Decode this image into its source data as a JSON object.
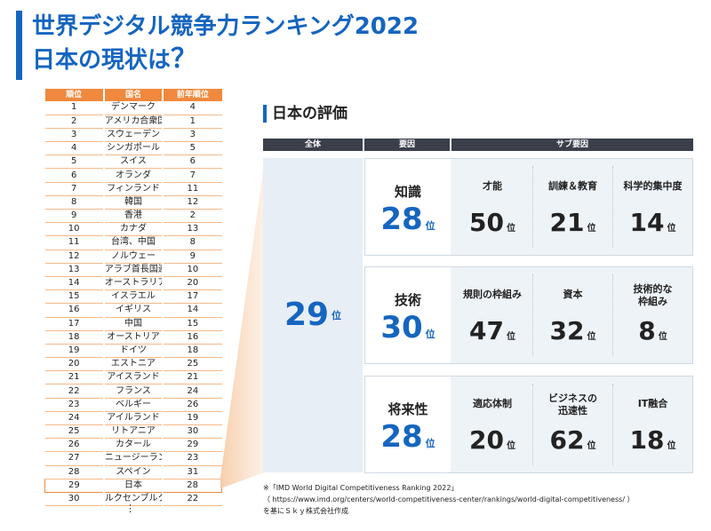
{
  "header": {
    "title_line1": "世界デジタル競争力ランキング2022",
    "title_line2": "日本の現状は",
    "title_q": "？"
  },
  "ranking": {
    "headers": [
      "順位",
      "国名",
      "前年順位"
    ],
    "rows": [
      [
        "1",
        "デンマーク",
        "4"
      ],
      [
        "2",
        "アメリカ合衆国",
        "1"
      ],
      [
        "3",
        "スウェーデン",
        "3"
      ],
      [
        "4",
        "シンガポール",
        "5"
      ],
      [
        "5",
        "スイス",
        "6"
      ],
      [
        "6",
        "オランダ",
        "7"
      ],
      [
        "7",
        "フィンランド",
        "11"
      ],
      [
        "8",
        "韓国",
        "12"
      ],
      [
        "9",
        "香港",
        "2"
      ],
      [
        "10",
        "カナダ",
        "13"
      ],
      [
        "11",
        "台湾、中国",
        "8"
      ],
      [
        "12",
        "ノルウェー",
        "9"
      ],
      [
        "13",
        "アラブ首長国連邦",
        "10"
      ],
      [
        "14",
        "オーストラリア",
        "20"
      ],
      [
        "15",
        "イスラエル",
        "17"
      ],
      [
        "16",
        "イギリス",
        "14"
      ],
      [
        "17",
        "中国",
        "15"
      ],
      [
        "18",
        "オーストリア",
        "16"
      ],
      [
        "19",
        "ドイツ",
        "18"
      ],
      [
        "20",
        "エストニア",
        "25"
      ],
      [
        "21",
        "アイスランド",
        "21"
      ],
      [
        "22",
        "フランス",
        "24"
      ],
      [
        "23",
        "ベルギー",
        "26"
      ],
      [
        "24",
        "アイルランド",
        "19"
      ],
      [
        "25",
        "リトアニア",
        "30"
      ],
      [
        "26",
        "カタール",
        "29"
      ],
      [
        "27",
        "ニュージーランド",
        "23"
      ],
      [
        "28",
        "スペイン",
        "31"
      ],
      [
        "29",
        "日本",
        "28"
      ],
      [
        "30",
        "ルクセンブルク",
        "22"
      ]
    ],
    "highlight_index": 28,
    "ellipsis": "⋮",
    "color_header": "#f0893d"
  },
  "evaluation": {
    "section_title": "日本の評価",
    "col_headers": {
      "overall": "全体",
      "factor": "要因",
      "sub": "サブ要因"
    },
    "overall_rank": "29",
    "unit": "位",
    "factors": [
      {
        "name": "知識",
        "rank": "28",
        "subs": [
          {
            "name": "才能",
            "rank": "50"
          },
          {
            "name": "訓練＆教育",
            "rank": "21"
          },
          {
            "name": "科学的集中度",
            "rank": "14"
          }
        ]
      },
      {
        "name": "技術",
        "rank": "30",
        "subs": [
          {
            "name": "規則の枠組み",
            "rank": "47"
          },
          {
            "name": "資本",
            "rank": "32"
          },
          {
            "name": "技術的な\n枠組み",
            "rank": "8"
          }
        ]
      },
      {
        "name": "将来性",
        "rank": "28",
        "subs": [
          {
            "name": "適応体制",
            "rank": "20"
          },
          {
            "name": "ビジネスの\n迅速性",
            "rank": "62"
          },
          {
            "name": "IT融合",
            "rank": "18"
          }
        ]
      }
    ],
    "accent_color": "#1565c0"
  },
  "footnote": {
    "line1": "※「IMD World Digital Competitiveness Ranking 2022」",
    "line2": "（ https://www.imd.org/centers/world-competitiveness-center/rankings/world-digital-competitiveness/ ）",
    "line3": "を基にＳｋｙ株式会社作成"
  }
}
